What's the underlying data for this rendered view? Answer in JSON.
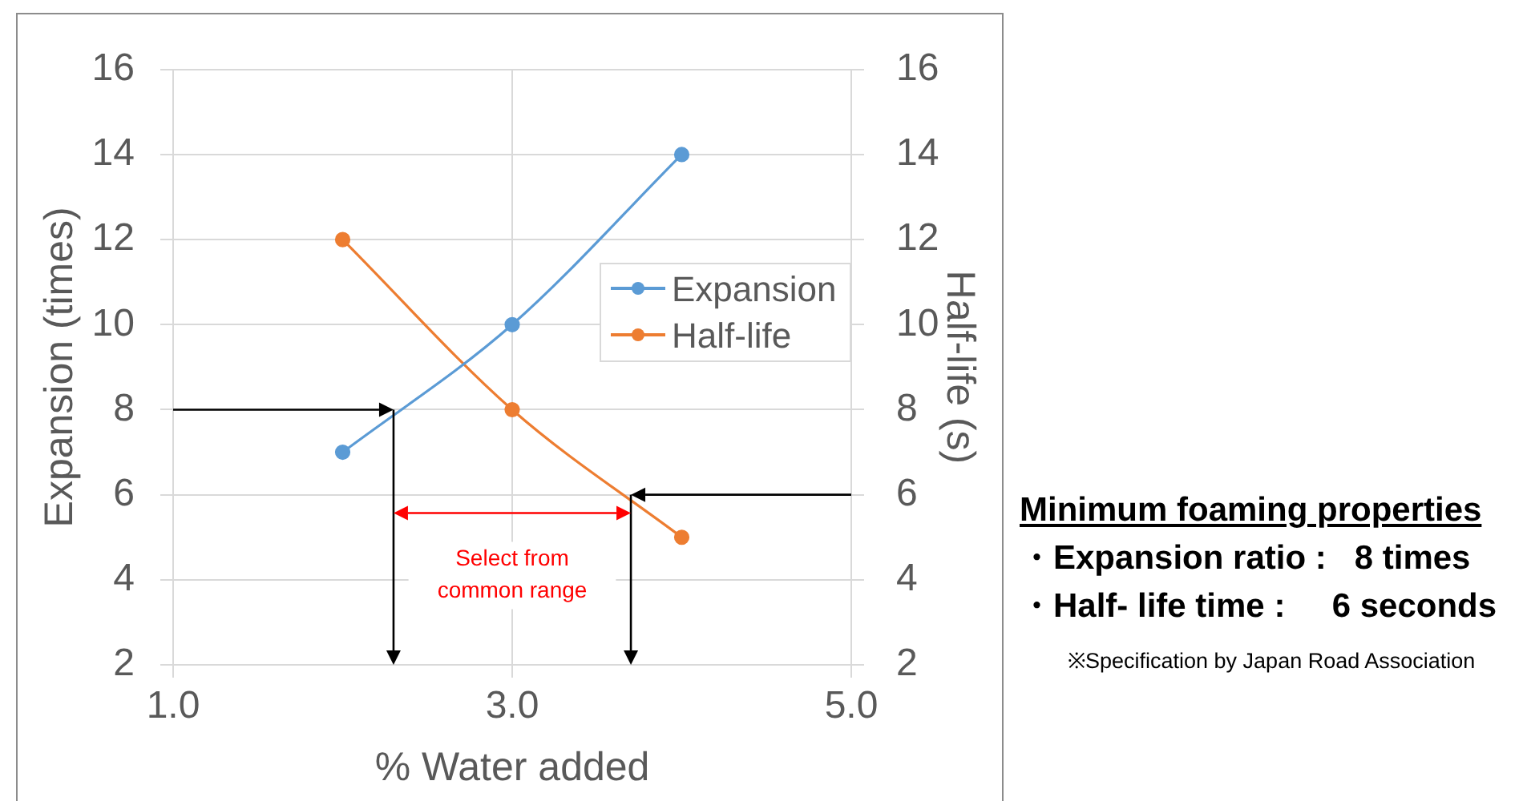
{
  "chart_data": {
    "type": "line",
    "xlabel": "% Water added",
    "ylabel": "Expansion (times)",
    "y2label": "Half-life (s)",
    "x": [
      2,
      3,
      4
    ],
    "series": [
      {
        "name": "Expansion",
        "color": "#5b9bd5",
        "values": [
          7,
          10,
          14
        ]
      },
      {
        "name": "Half-life",
        "color": "#ed7d31",
        "values": [
          12,
          8,
          5
        ],
        "axis": "y2"
      }
    ],
    "xlim": [
      1,
      5
    ],
    "xticks": [
      {
        "value": 1,
        "label": "1.0"
      },
      {
        "value": 3,
        "label": "3.0"
      },
      {
        "value": 5,
        "label": "5.0"
      }
    ],
    "ylim": [
      2,
      16
    ],
    "yticks": [
      2,
      4,
      6,
      8,
      10,
      12,
      14,
      16
    ],
    "y2lim": [
      2,
      16
    ],
    "y2ticks": [
      2,
      4,
      6,
      8,
      10,
      12,
      14,
      16
    ],
    "grid": true,
    "legend": "right",
    "marker": "circle",
    "line_style": "solid",
    "ref_lines": [
      {
        "axis": "y",
        "value": 8,
        "color": "#000000"
      },
      {
        "axis": "x",
        "value": 2.3,
        "color": "#000000"
      },
      {
        "axis": "y2",
        "value": 6,
        "color": "#000000"
      },
      {
        "axis": "x",
        "value": 3.7,
        "color": "#000000"
      }
    ],
    "annotations": [
      "Select from common range",
      "Minimum foaming properties",
      "・Expansion ratio :   8 times",
      "・Half- life time :     6 seconds",
      "※Specification by Japan Road Association"
    ]
  }
}
